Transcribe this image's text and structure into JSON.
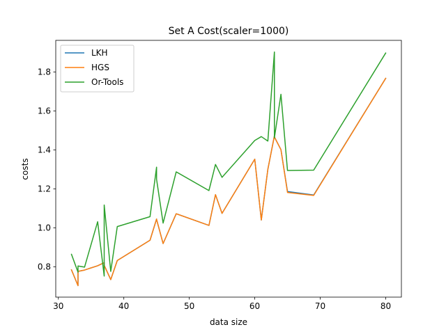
{
  "chart_data": {
    "type": "line",
    "title": "Set A Cost(scaler=1000)",
    "xlabel": "data size",
    "ylabel": "costs",
    "xlim": [
      29.6,
      82.4
    ],
    "ylim": [
      0.644,
      1.962
    ],
    "xticks": [
      30,
      40,
      50,
      60,
      70,
      80
    ],
    "yticks": [
      0.8,
      1.0,
      1.2,
      1.4,
      1.6,
      1.8
    ],
    "xtick_labels": [
      "30",
      "40",
      "50",
      "60",
      "70",
      "80"
    ],
    "ytick_labels": [
      "0.8",
      "1.0",
      "1.2",
      "1.4",
      "1.6",
      "1.8"
    ],
    "legend_position": "upper-left",
    "grid": false,
    "x": [
      32,
      33,
      33,
      34,
      36,
      37,
      37,
      38,
      39,
      44,
      45,
      45,
      46,
      48,
      53,
      54,
      55,
      60,
      61,
      62,
      63,
      63,
      64,
      65,
      69,
      80
    ],
    "series": [
      {
        "name": "LKH",
        "color": "#1f77b4",
        "values": [
          0.784,
          0.703,
          0.776,
          0.783,
          0.805,
          0.821,
          0.807,
          0.734,
          0.832,
          0.936,
          1.045,
          1.043,
          0.919,
          1.072,
          1.012,
          1.17,
          1.074,
          1.352,
          1.04,
          1.3,
          1.472,
          1.466,
          1.401,
          1.186,
          1.168,
          1.767
        ]
      },
      {
        "name": "HGS",
        "color": "#ff7f0e",
        "values": [
          0.784,
          0.703,
          0.776,
          0.783,
          0.805,
          0.821,
          0.807,
          0.734,
          0.832,
          0.936,
          1.045,
          1.043,
          0.919,
          1.072,
          1.012,
          1.17,
          1.074,
          1.352,
          1.04,
          1.3,
          1.472,
          1.466,
          1.401,
          1.181,
          1.166,
          1.767
        ]
      },
      {
        "name": "Or-Tools",
        "color": "#2ca02c",
        "values": [
          0.864,
          0.772,
          0.804,
          0.798,
          1.031,
          0.752,
          1.117,
          0.776,
          1.006,
          1.057,
          1.311,
          1.249,
          1.024,
          1.287,
          1.191,
          1.325,
          1.259,
          1.448,
          1.468,
          1.445,
          1.902,
          1.462,
          1.685,
          1.294,
          1.296,
          1.897
        ]
      }
    ]
  }
}
